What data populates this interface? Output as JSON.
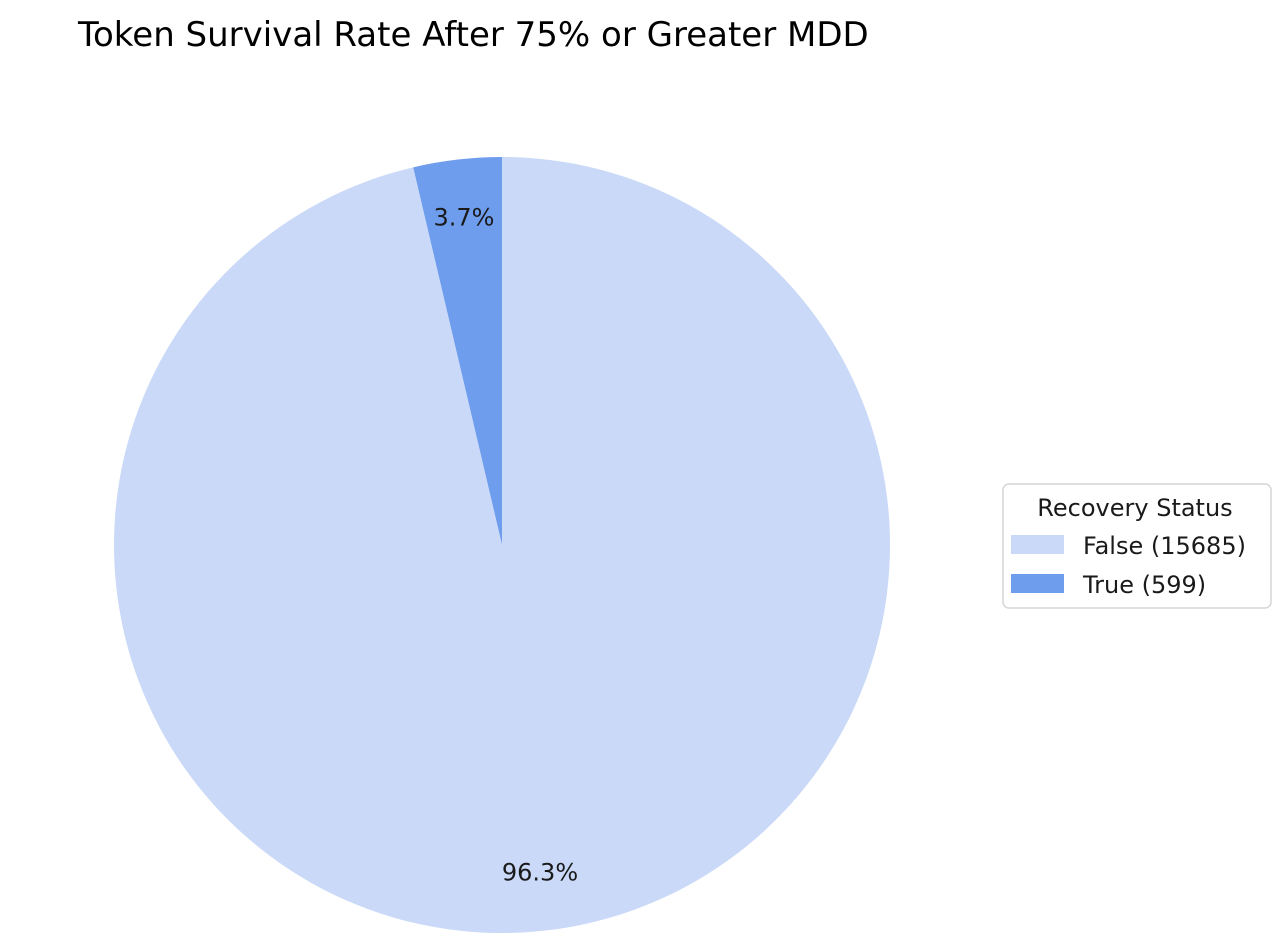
{
  "chart_data": {
    "type": "pie",
    "title": "Token Survival Rate After 75% or Greater MDD",
    "legend": {
      "title": "Recovery Status",
      "placement": "right"
    },
    "slices": [
      {
        "label": "False",
        "count": 15685,
        "legend_label": "False (15685)",
        "percent_label": "96.3%",
        "color": "#c9d9f7"
      },
      {
        "label": "True",
        "count": 599,
        "legend_label": "True (599)",
        "percent_label": "3.7%",
        "color": "#6f9ded"
      }
    ]
  }
}
